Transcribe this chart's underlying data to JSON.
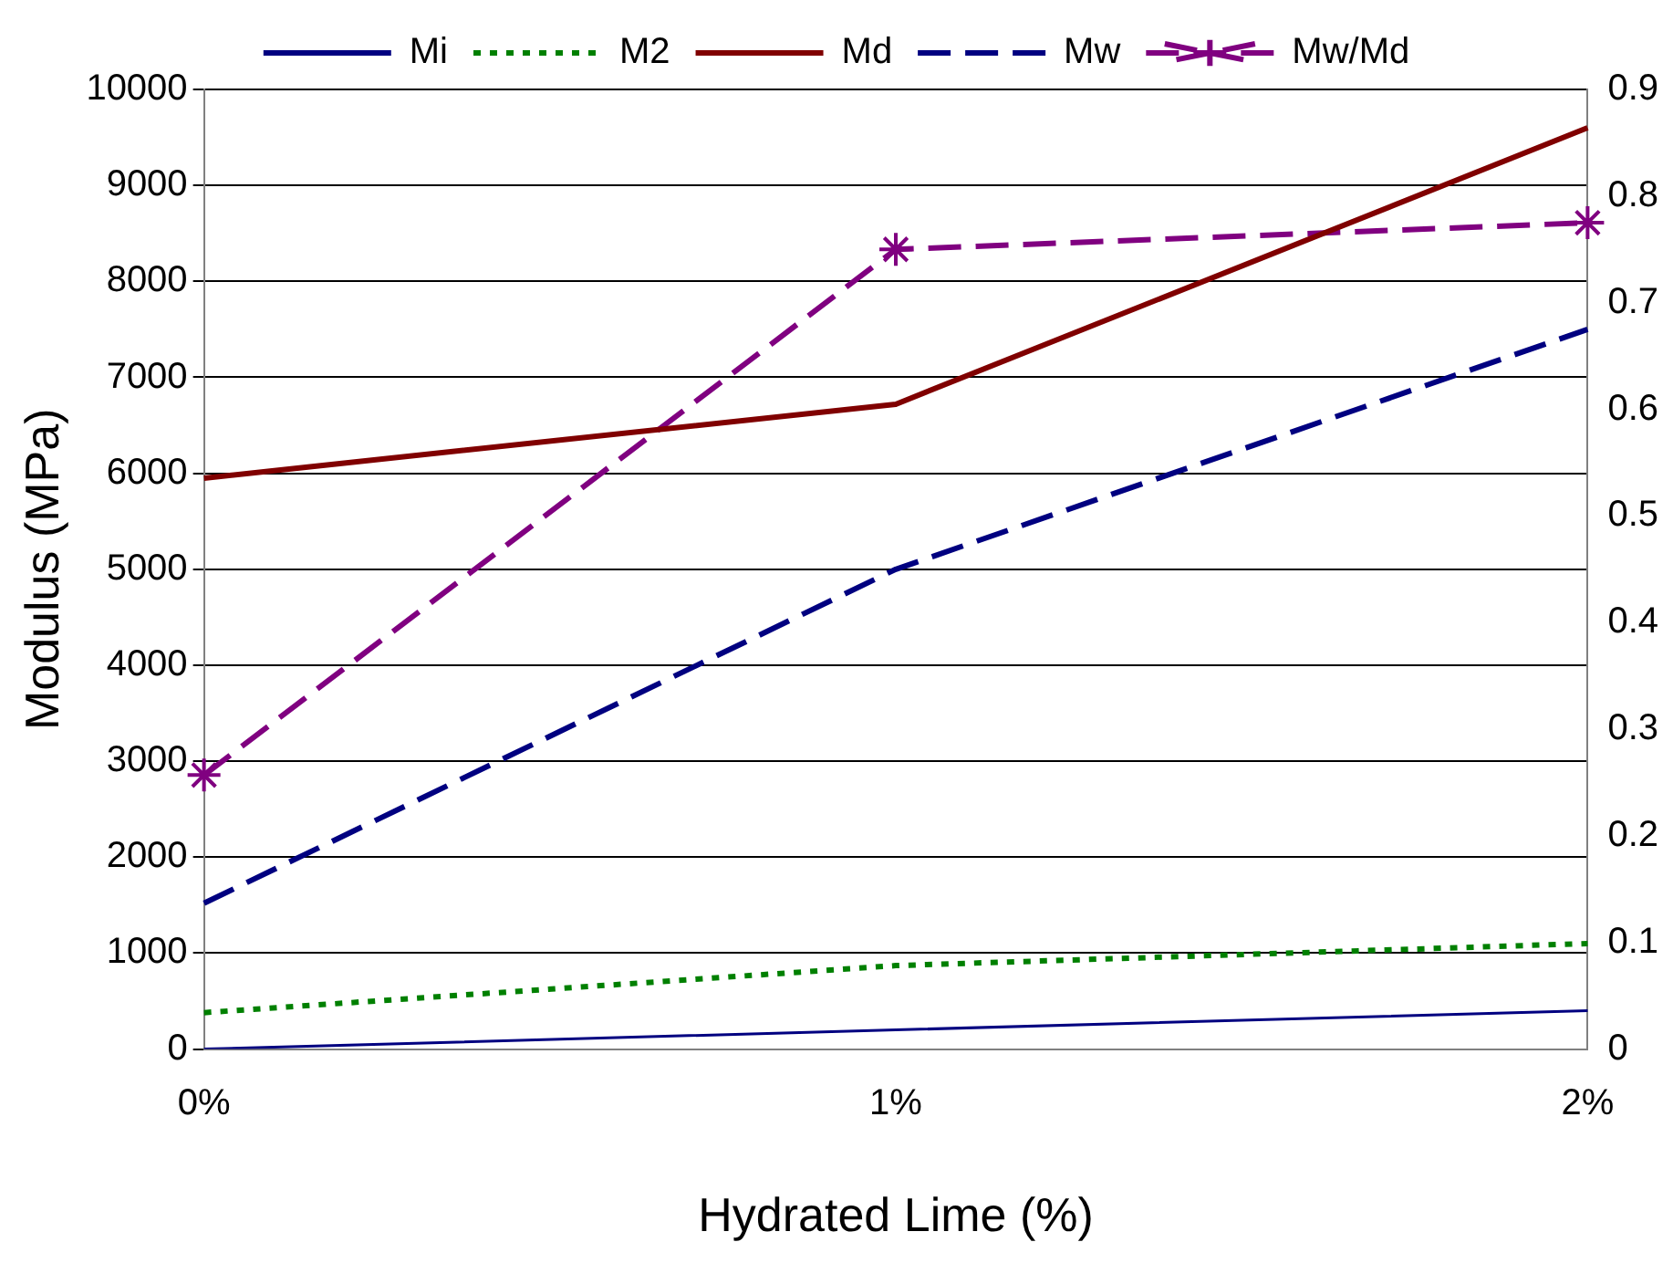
{
  "chart_data": {
    "type": "line",
    "xlabel": "Hydrated Lime (%)",
    "ylabel": "Modulus (MPa)",
    "categories": [
      "0%",
      "1%",
      "2%"
    ],
    "series": [
      {
        "name": "Mi",
        "color": "#000080",
        "values": [
          0,
          200,
          400
        ],
        "line_style": "solid",
        "marker": "none"
      },
      {
        "name": "M2",
        "color": "#008000",
        "values": [
          380,
          870,
          1100
        ],
        "line_style": "dotted",
        "marker": "none"
      },
      {
        "name": "Md",
        "color": "#800000",
        "values": [
          5950,
          6720,
          9600
        ],
        "line_style": "solid",
        "marker": "none"
      },
      {
        "name": "Mw",
        "color": "#000080",
        "values": [
          1520,
          5000,
          7500
        ],
        "line_style": "dashed",
        "marker": "none"
      },
      {
        "name": "Mw/Md",
        "color": "#800080",
        "values": [
          0.257,
          0.75,
          0.775
        ],
        "line_style": "dashed",
        "marker": "cross",
        "axis": "y2"
      }
    ],
    "ylim": [
      0,
      10000
    ],
    "yticks": [
      0,
      1000,
      2000,
      3000,
      4000,
      5000,
      6000,
      7000,
      8000,
      9000,
      10000
    ],
    "y2lim": [
      0,
      0.9
    ],
    "y2ticks": [
      0,
      0.1,
      0.2,
      0.3,
      0.4,
      0.5,
      0.6,
      0.7,
      0.8,
      0.9
    ],
    "grid": "y",
    "legend": "top"
  }
}
